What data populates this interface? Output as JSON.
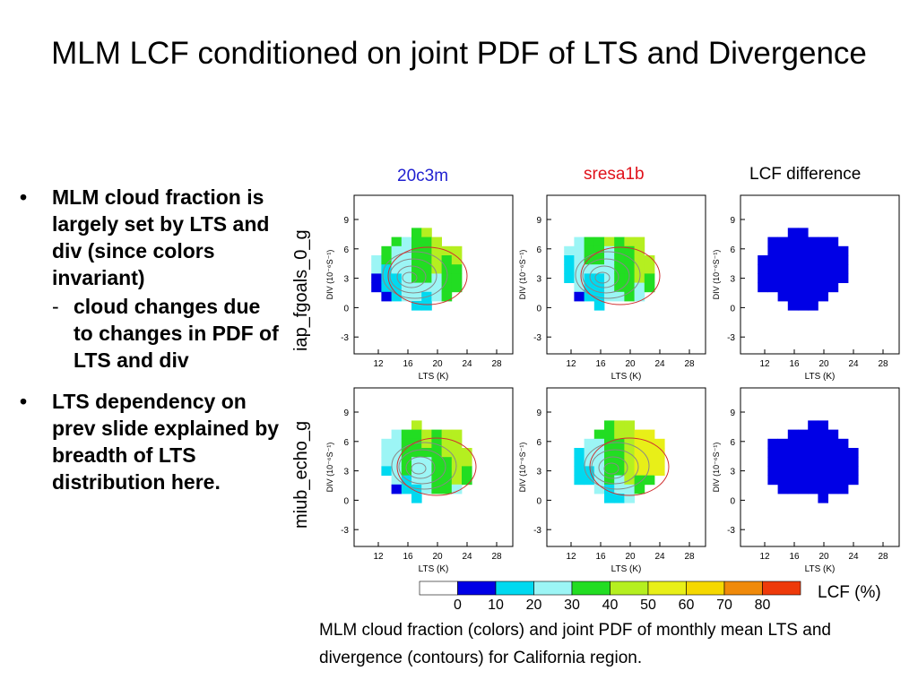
{
  "slide": {
    "title": "MLM LCF conditioned on joint PDF of LTS and Divergence",
    "bullets": [
      {
        "text": "MLM cloud fraction is largely set by LTS and div (since colors invariant)",
        "sub": "cloud changes due to changes in PDF of LTS and div"
      },
      {
        "text": "LTS dependency on prev slide explained by breadth of LTS distribution here."
      }
    ],
    "caption": "MLM cloud fraction (colors) and joint PDF of monthly mean LTS and divergence (contours) for California region."
  },
  "figure": {
    "columns": [
      {
        "label": "20c3m",
        "color": "#1f1fd0"
      },
      {
        "label": "sresa1b",
        "color": "#e0121b"
      },
      {
        "label": "LCF difference",
        "color": "#000000"
      }
    ],
    "rows": [
      "iap_fgoals_0_g",
      "miub_echo_g"
    ],
    "x_label": "LTS (K)",
    "y_label": "DIV (10⁻⁶S⁻¹)",
    "x_ticks": [
      "12",
      "16",
      "20",
      "24",
      "28"
    ],
    "y_ticks": [
      "9",
      "6",
      "3",
      "0",
      "-3"
    ],
    "colorbar": {
      "ticks": [
        "0",
        "10",
        "20",
        "30",
        "40",
        "50",
        "60",
        "70",
        "80"
      ],
      "colors": [
        "#ffffff",
        "#0000e6",
        "#00d9f0",
        "#9cf5f5",
        "#22dd22",
        "#b5ef20",
        "#e8ef18",
        "#f5d800",
        "#f08a0a",
        "#ee3a0a"
      ],
      "label": "LCF (%)"
    }
  }
}
